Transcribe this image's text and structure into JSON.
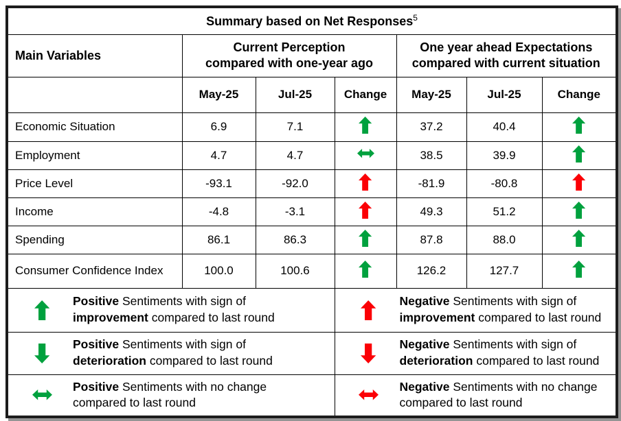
{
  "title": {
    "text": "Summary based on Net Responses",
    "superscript": "5"
  },
  "colors": {
    "positive": "#00a13e",
    "negative": "#fb0006"
  },
  "header": {
    "main_variables": "Main Variables",
    "group1": "Current Perception\ncompared with one-year ago",
    "group2": "One year ahead Expectations\ncompared with current situation"
  },
  "subheader": [
    "May-25",
    "Jul-25",
    "Change",
    "May-25",
    "Jul-25",
    "Change"
  ],
  "rows": [
    {
      "label": "Economic Situation",
      "cp_may": "6.9",
      "cp_jul": "7.1",
      "cp_change": {
        "dir": "up",
        "sentiment": "positive"
      },
      "exp_may": "37.2",
      "exp_jul": "40.4",
      "exp_change": {
        "dir": "up",
        "sentiment": "positive"
      }
    },
    {
      "label": "Employment",
      "cp_may": "4.7",
      "cp_jul": "4.7",
      "cp_change": {
        "dir": "both",
        "sentiment": "positive"
      },
      "exp_may": "38.5",
      "exp_jul": "39.9",
      "exp_change": {
        "dir": "up",
        "sentiment": "positive"
      }
    },
    {
      "label": "Price Level",
      "cp_may": "-93.1",
      "cp_jul": "-92.0",
      "cp_change": {
        "dir": "up",
        "sentiment": "negative"
      },
      "exp_may": "-81.9",
      "exp_jul": "-80.8",
      "exp_change": {
        "dir": "up",
        "sentiment": "negative"
      }
    },
    {
      "label": "Income",
      "cp_may": "-4.8",
      "cp_jul": "-3.1",
      "cp_change": {
        "dir": "up",
        "sentiment": "negative"
      },
      "exp_may": "49.3",
      "exp_jul": "51.2",
      "exp_change": {
        "dir": "up",
        "sentiment": "positive"
      }
    },
    {
      "label": "Spending",
      "cp_may": "86.1",
      "cp_jul": "86.3",
      "cp_change": {
        "dir": "up",
        "sentiment": "positive"
      },
      "exp_may": "87.8",
      "exp_jul": "88.0",
      "exp_change": {
        "dir": "up",
        "sentiment": "positive"
      }
    },
    {
      "label": "Consumer Confidence Index",
      "cp_may": "100.0",
      "cp_jul": "100.6",
      "cp_change": {
        "dir": "up",
        "sentiment": "positive"
      },
      "exp_may": "126.2",
      "exp_jul": "127.7",
      "exp_change": {
        "dir": "up",
        "sentiment": "positive"
      }
    }
  ],
  "legend": {
    "items": [
      {
        "arrow": {
          "dir": "up",
          "sentiment": "positive"
        },
        "segments": [
          {
            "text": "Positive",
            "bold": true
          },
          {
            "text": " Sentiments with sign of\n",
            "bold": false
          },
          {
            "text": "improvement",
            "bold": true
          },
          {
            "text": " compared to last round",
            "bold": false
          }
        ]
      },
      {
        "arrow": {
          "dir": "up",
          "sentiment": "negative"
        },
        "segments": [
          {
            "text": "Negative",
            "bold": true
          },
          {
            "text": " Sentiments with sign of\n",
            "bold": false
          },
          {
            "text": "improvement",
            "bold": true
          },
          {
            "text": " compared to last round",
            "bold": false
          }
        ]
      },
      {
        "arrow": {
          "dir": "down",
          "sentiment": "positive"
        },
        "segments": [
          {
            "text": "Positive",
            "bold": true
          },
          {
            "text": " Sentiments with sign of\n",
            "bold": false
          },
          {
            "text": "deterioration",
            "bold": true
          },
          {
            "text": " compared to last round",
            "bold": false
          }
        ]
      },
      {
        "arrow": {
          "dir": "down",
          "sentiment": "negative"
        },
        "segments": [
          {
            "text": "Negative",
            "bold": true
          },
          {
            "text": " Sentiments with sign of\n",
            "bold": false
          },
          {
            "text": "deterioration",
            "bold": true
          },
          {
            "text": " compared to last round",
            "bold": false
          }
        ]
      },
      {
        "arrow": {
          "dir": "both",
          "sentiment": "positive"
        },
        "segments": [
          {
            "text": "Positive",
            "bold": true
          },
          {
            "text": " Sentiments with no change\ncompared to last round",
            "bold": false
          }
        ]
      },
      {
        "arrow": {
          "dir": "both",
          "sentiment": "negative"
        },
        "segments": [
          {
            "text": "Negative",
            "bold": true
          },
          {
            "text": " Sentiments with no change\ncompared to last round",
            "bold": false
          }
        ]
      }
    ]
  }
}
